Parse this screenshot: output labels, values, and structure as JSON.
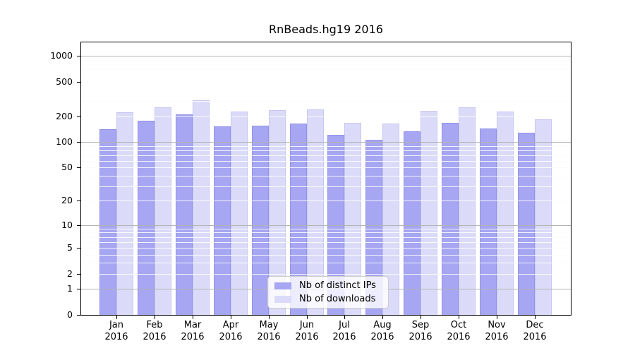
{
  "figure": {
    "background": "#ffffff",
    "axis_color": "#000000",
    "major_grid_color": "#b3b3b3",
    "minor_grid_under_color": "#e9e9e9",
    "minor_grid_over_color": "rgba(255,255,255,0.85)"
  },
  "chart_data": {
    "type": "bar",
    "title": "RnBeads.hg19 2016",
    "categories": [
      "Jan",
      "Feb",
      "Mar",
      "Apr",
      "May",
      "Jun",
      "Jul",
      "Aug",
      "Sep",
      "Oct",
      "Nov",
      "Dec"
    ],
    "year_label": "2016",
    "series": [
      {
        "name": "Nb of distinct IPs",
        "key": "distinct-ips",
        "color": "#a6a6f2",
        "border_color": "#9292e8",
        "values": [
          140,
          177,
          211,
          152,
          155,
          163,
          122,
          106,
          132,
          167,
          145,
          129
        ]
      },
      {
        "name": "Nb of downloads",
        "key": "downloads",
        "color": "#dbdbf9",
        "border_color": "#c6c6f2",
        "values": [
          222,
          254,
          308,
          227,
          236,
          239,
          168,
          163,
          231,
          255,
          225,
          184
        ]
      }
    ],
    "xlabel": "",
    "ylabel": "",
    "yscale": "log1p",
    "yticks": [
      0,
      1,
      2,
      5,
      10,
      20,
      50,
      100,
      200,
      500,
      1000
    ],
    "ylim": [
      0,
      1440
    ],
    "grid": true,
    "legend_position": "inside-bottom-center"
  }
}
